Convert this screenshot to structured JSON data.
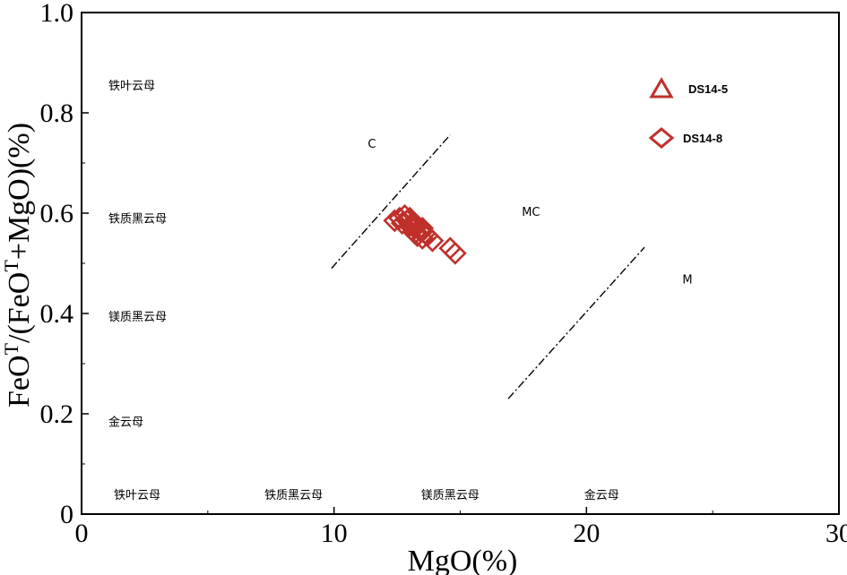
{
  "chart_data": {
    "type": "scatter",
    "xlabel": "MgO(%)",
    "ylabel_parts": [
      "FeO",
      "T",
      "/(FeO",
      "T",
      "+MgO)(%)"
    ],
    "xlim": [
      0,
      30
    ],
    "ylim": [
      0,
      1.0
    ],
    "x_ticks": [
      "0",
      "10",
      "20",
      "30"
    ],
    "y_ticks": [
      "0",
      "0.2",
      "0.4",
      "0.6",
      "0.8",
      "1.0"
    ],
    "grid": false,
    "legend_placement": "top-right",
    "colors": {
      "series": "#c0302b",
      "axis": "#000000"
    },
    "series": [
      {
        "name": "DS14-5",
        "marker": "triangle",
        "points": []
      },
      {
        "name": "DS14-8",
        "marker": "diamond",
        "points": [
          [
            12.4,
            0.585
          ],
          [
            12.6,
            0.59
          ],
          [
            12.7,
            0.58
          ],
          [
            12.8,
            0.595
          ],
          [
            12.9,
            0.585
          ],
          [
            13.0,
            0.575
          ],
          [
            13.1,
            0.58
          ],
          [
            13.2,
            0.57
          ],
          [
            13.0,
            0.59
          ],
          [
            13.3,
            0.575
          ],
          [
            13.4,
            0.565
          ],
          [
            13.2,
            0.56
          ],
          [
            13.5,
            0.57
          ],
          [
            13.3,
            0.555
          ],
          [
            13.6,
            0.56
          ],
          [
            13.5,
            0.55
          ],
          [
            13.7,
            0.555
          ],
          [
            13.9,
            0.545
          ],
          [
            14.6,
            0.53
          ],
          [
            14.8,
            0.52
          ]
        ]
      }
    ],
    "boundary_lines": [
      {
        "from": [
          9.9,
          0.49
        ],
        "to": [
          14.6,
          0.756
        ]
      },
      {
        "from": [
          16.9,
          0.23
        ],
        "to": [
          22.3,
          0.532
        ]
      }
    ],
    "region_labels_inside": [
      {
        "text": "C",
        "x": 11.5,
        "y": 0.73
      },
      {
        "text": "MC",
        "x": 17.8,
        "y": 0.595
      },
      {
        "text": "M",
        "x": 24.0,
        "y": 0.46
      }
    ],
    "y_side_labels": [
      {
        "text": "铁叶云母",
        "y": 0.855
      },
      {
        "text": "铁质黑云母",
        "y": 0.59
      },
      {
        "text": "镁质黑云母",
        "y": 0.395
      },
      {
        "text": "金云母",
        "y": 0.185
      }
    ],
    "x_bottom_labels": [
      {
        "text": "铁叶云母",
        "x": 2.2
      },
      {
        "text": "铁质黑云母",
        "x": 8.4
      },
      {
        "text": "镁质黑云母",
        "x": 14.6
      },
      {
        "text": "金云母",
        "x": 20.6
      }
    ],
    "legend": [
      {
        "name": "DS14-5",
        "marker": "triangle"
      },
      {
        "name": "DS14-8",
        "marker": "diamond"
      }
    ]
  }
}
